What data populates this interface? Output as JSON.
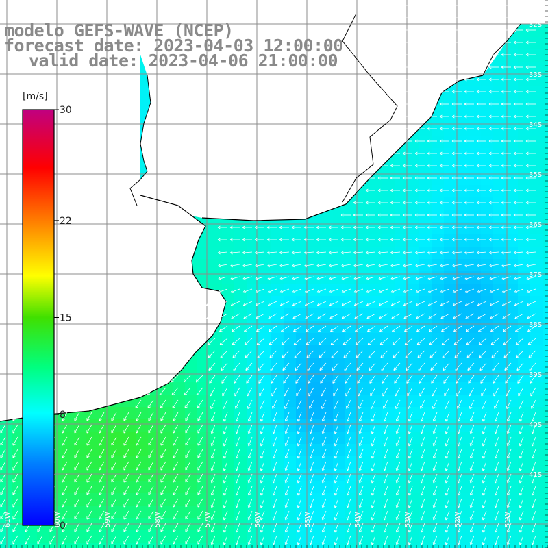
{
  "header": {
    "line1": "modelo GEFS-WAVE (NCEP)",
    "line2": "forecast date: 2023-04-03 12:00:00",
    "line3": "valid date: 2023-04-06 21:00:00"
  },
  "colorbar": {
    "unit": "[m/s]",
    "min": 0,
    "max": 30,
    "ticks": [
      "30",
      "22",
      "15",
      "8",
      "0"
    ],
    "tick_values": [
      30,
      22,
      15,
      8,
      0
    ],
    "stops": [
      "#0000ff",
      "#00bfff",
      "#00ffff",
      "#00ff00",
      "#ffff00",
      "#ff8000",
      "#ff0000",
      "#c00080"
    ]
  },
  "map": {
    "variable": "wind speed",
    "right_lat_labels": [
      "32S",
      "33S",
      "34S",
      "35S",
      "36S",
      "37S",
      "38S",
      "39S",
      "40S",
      "41S"
    ],
    "bottom_lon_labels": [
      "61W",
      "60W",
      "59W",
      "58W",
      "57W",
      "56W",
      "55W",
      "54W",
      "53W",
      "52W",
      "51W"
    ],
    "colors": {
      "land": "#ffffff",
      "grid": "#8c8c8c",
      "coast": "#000000",
      "arrow": "#ffffff"
    }
  }
}
